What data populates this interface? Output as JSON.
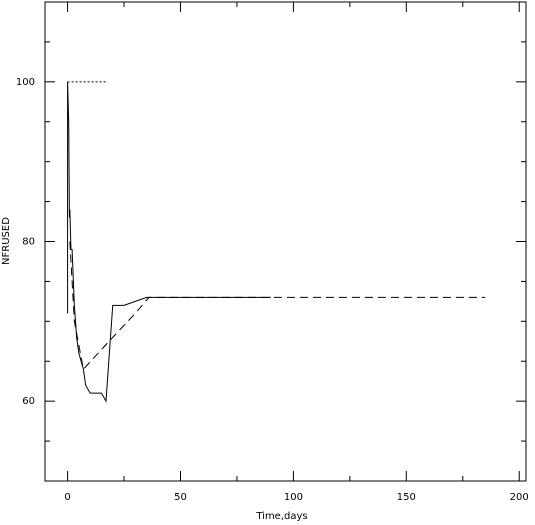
{
  "chart_data": {
    "type": "line",
    "x_label": "Time,days",
    "y_label": "NFRUSED",
    "xlim": [
      -10,
      203
    ],
    "xticks": [
      0,
      50,
      100,
      150,
      200
    ],
    "xminor_ticks": [
      25,
      75,
      125,
      175
    ],
    "ylim": [
      50,
      110
    ],
    "yticks": [
      60,
      80,
      100
    ],
    "yminor_ticks": [
      55,
      65,
      70,
      75,
      85,
      90,
      95,
      105
    ],
    "grid": false,
    "series": [
      {
        "color": "#000000",
        "dash": "solid",
        "x": [
          0,
          0,
          0.5,
          0.8,
          1,
          1.5,
          2,
          3,
          4,
          5,
          6,
          7,
          8,
          10,
          12,
          15,
          17,
          20,
          25,
          30,
          35,
          40,
          90
        ],
        "values": [
          71,
          100,
          95,
          83,
          84,
          79,
          79,
          72,
          68,
          66,
          65,
          64,
          62,
          61,
          61,
          61,
          60,
          72,
          72,
          72.5,
          73,
          73,
          73
        ]
      },
      {
        "color": "#000000",
        "dash": "dashed",
        "x": [
          1,
          3,
          7,
          20,
          30,
          36,
          185
        ],
        "values": [
          80,
          70,
          64,
          68,
          71,
          73,
          73
        ]
      },
      {
        "color": "#000000",
        "dash": "dotted",
        "x": [
          0,
          17
        ],
        "values": [
          100,
          100
        ]
      }
    ]
  }
}
